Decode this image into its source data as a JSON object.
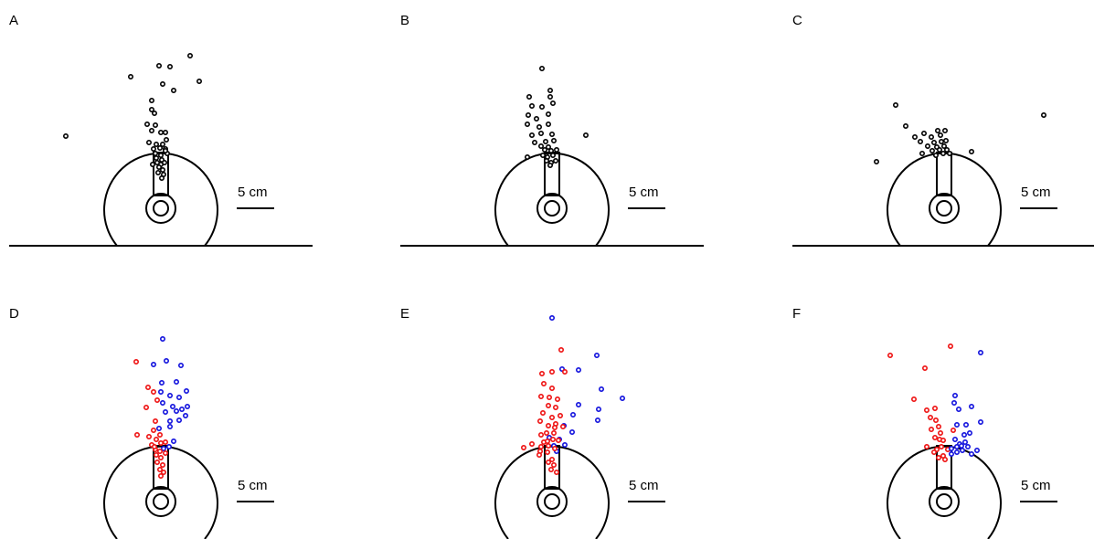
{
  "panels": [
    {
      "letter": "A",
      "scale_label": "5 cm"
    },
    {
      "letter": "B",
      "scale_label": "5 cm"
    },
    {
      "letter": "C",
      "scale_label": "5 cm"
    },
    {
      "letter": "D",
      "scale_label": "5 cm"
    },
    {
      "letter": "E",
      "scale_label": "5 cm"
    },
    {
      "letter": "F",
      "scale_label": "5 cm"
    }
  ],
  "colors": {
    "outline": "#000000",
    "points_black": "#000000",
    "points_red": "#ee1111",
    "points_blue": "#1111dd"
  }
}
